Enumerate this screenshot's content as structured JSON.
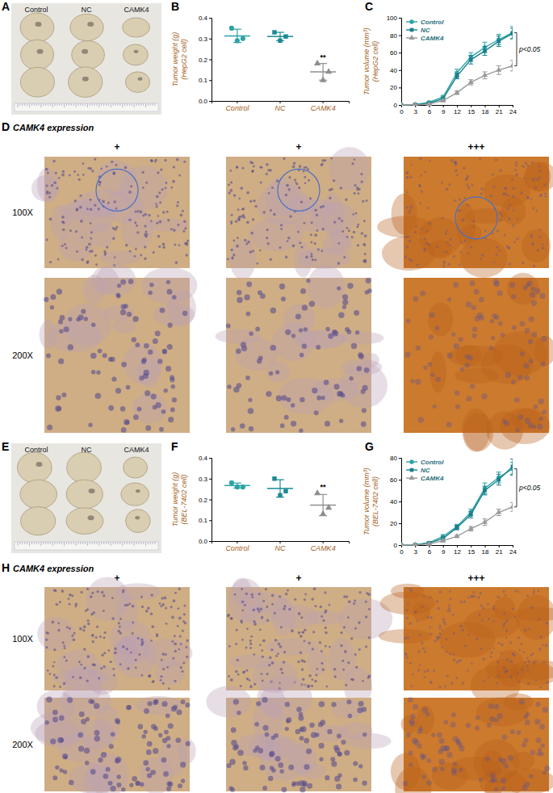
{
  "chart_data": [
    {
      "type": "dot",
      "panel": "B",
      "y_label": [
        "Tumor weight (g)",
        "(HepG2 cell)"
      ],
      "categories": [
        "Control",
        "NC",
        "CAMK4"
      ],
      "values": [
        [
          0.35,
          0.3,
          0.29
        ],
        [
          0.33,
          0.31,
          0.29
        ],
        [
          0.18,
          0.14,
          0.1
        ]
      ],
      "mean": [
        0.313,
        0.31,
        0.14
      ],
      "sd": [
        0.032,
        0.02,
        0.04
      ],
      "colors": [
        "#2ba3a6",
        "#1b8a94",
        "#8f8f8f"
      ],
      "ylim": [
        0,
        0.4
      ],
      "yticks": [
        {
          "value": 0,
          "label": "0.0"
        },
        {
          "value": 0.1,
          "label": "0.1"
        },
        {
          "value": 0.2,
          "label": "0.2"
        },
        {
          "value": 0.3,
          "label": "0.3"
        },
        {
          "value": 0.4,
          "label": "0.4"
        }
      ],
      "annotation": "**"
    },
    {
      "type": "line",
      "panel": "C",
      "y_label": [
        "Tumor volume (mm³)",
        "(HepG2 cell)"
      ],
      "x": [
        0,
        3,
        6,
        9,
        12,
        15,
        18,
        21,
        24
      ],
      "series": [
        {
          "name": "Control",
          "color": "#2ba3a6",
          "marker": "circle",
          "values": [
            0,
            0.5,
            3,
            9,
            37,
            55,
            66,
            75,
            83
          ],
          "errors": [
            0,
            0.3,
            1,
            2,
            4,
            5,
            6,
            6,
            7
          ]
        },
        {
          "name": "NC",
          "color": "#1b7f8c",
          "marker": "square",
          "values": [
            0,
            0.5,
            2,
            7,
            33,
            52,
            62,
            73,
            82
          ],
          "errors": [
            0,
            0.3,
            1,
            2,
            3,
            5,
            5,
            6,
            6
          ]
        },
        {
          "name": "CAMK4",
          "color": "#9a9a9a",
          "marker": "triangle",
          "values": [
            0,
            0.3,
            1,
            5,
            14,
            26,
            34,
            40,
            45
          ],
          "errors": [
            0,
            0.2,
            0.5,
            1,
            2,
            3,
            4,
            5,
            6
          ]
        }
      ],
      "xlim": [
        0,
        24
      ],
      "xticks": [
        0,
        3,
        6,
        9,
        12,
        15,
        18,
        21,
        24
      ],
      "ylim": [
        0,
        100
      ],
      "yticks": [
        0,
        20,
        40,
        60,
        80,
        100
      ],
      "legend": "upper left",
      "annotation": "p<0.05"
    },
    {
      "type": "dot",
      "panel": "F",
      "y_label": [
        "Tumor weight (g)",
        "(BEL-7402 cell)"
      ],
      "categories": [
        "Control",
        "NC",
        "CAMK4"
      ],
      "values": [
        [
          0.28,
          0.26,
          0.26
        ],
        [
          0.3,
          0.24,
          0.22
        ],
        [
          0.23,
          0.16,
          0.13
        ]
      ],
      "mean": [
        0.267,
        0.253,
        0.173
      ],
      "sd": [
        0.012,
        0.042,
        0.051
      ],
      "colors": [
        "#2ba3a6",
        "#1b8a94",
        "#8f8f8f"
      ],
      "ylim": [
        0,
        0.4
      ],
      "yticks": [
        {
          "value": 0,
          "label": "0.0"
        },
        {
          "value": 0.1,
          "label": "0.1"
        },
        {
          "value": 0.2,
          "label": "0.2"
        },
        {
          "value": 0.3,
          "label": "0.3"
        },
        {
          "value": 0.4,
          "label": "0.4"
        }
      ],
      "annotation": "**"
    },
    {
      "type": "line",
      "panel": "G",
      "y_label": [
        "Tumor volume (mm³)",
        "(BEL-7402 cell)"
      ],
      "x": [
        0,
        3,
        6,
        9,
        12,
        15,
        18,
        21,
        24
      ],
      "series": [
        {
          "name": "Control",
          "color": "#2ba3a6",
          "marker": "circle",
          "values": [
            0,
            0.3,
            2,
            8,
            17,
            30,
            52,
            62,
            70
          ],
          "errors": [
            0,
            0.2,
            1,
            1.5,
            2,
            3,
            5,
            5,
            6
          ]
        },
        {
          "name": "NC",
          "color": "#1b7f8c",
          "marker": "square",
          "values": [
            0,
            0.3,
            2,
            6,
            16,
            28,
            50,
            60,
            72
          ],
          "errors": [
            0,
            0.2,
            1,
            1.5,
            2,
            3,
            4,
            5,
            7
          ]
        },
        {
          "name": "CAMK4",
          "color": "#9a9a9a",
          "marker": "triangle",
          "values": [
            0,
            0.2,
            1,
            4,
            8,
            15,
            21,
            30,
            35
          ],
          "errors": [
            0,
            0.1,
            0.5,
            1,
            1,
            2,
            3,
            3,
            4
          ]
        }
      ],
      "xlim": [
        0,
        24
      ],
      "xticks": [
        0,
        3,
        6,
        9,
        12,
        15,
        18,
        21,
        24
      ],
      "ylim": [
        0,
        80
      ],
      "yticks": [
        0,
        20,
        40,
        60,
        80
      ],
      "legend": "upper left",
      "annotation": "p<0.05"
    }
  ],
  "image_panels": [
    {
      "panel": "A",
      "labels": [
        "Control",
        "NC",
        "CAMK4"
      ]
    },
    {
      "panel": "D",
      "title": "CAMK4 expression",
      "columns": [
        "+",
        "+",
        "+++"
      ],
      "rows": [
        "100X",
        "200X"
      ]
    },
    {
      "panel": "E",
      "labels": [
        "Control",
        "NC",
        "CAMK4"
      ]
    },
    {
      "panel": "H",
      "title": "CAMK4 expression",
      "columns": [
        "+",
        "+",
        "+++"
      ],
      "rows": [
        "100X",
        "200X"
      ]
    }
  ]
}
